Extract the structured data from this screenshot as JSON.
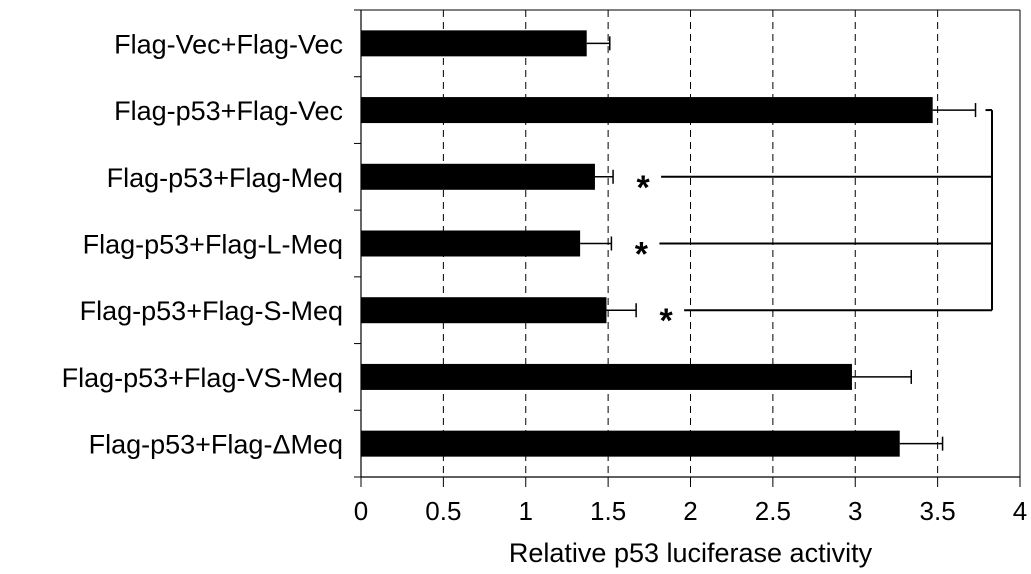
{
  "chart_data": {
    "type": "bar",
    "orientation": "horizontal",
    "categories": [
      "Flag-Vec+Flag-Vec",
      "Flag-p53+Flag-Vec",
      "Flag-p53+Flag-Meq",
      "Flag-p53+Flag-L-Meq",
      "Flag-p53+Flag-S-Meq",
      "Flag-p53+Flag-VS-Meq",
      "Flag-p53+Flag-ΔMeq"
    ],
    "values": [
      1.37,
      3.47,
      1.42,
      1.33,
      1.49,
      2.98,
      3.27
    ],
    "errors": [
      0.14,
      0.26,
      0.11,
      0.19,
      0.18,
      0.36,
      0.26
    ],
    "xlabel": "Relative p53 luciferase activity",
    "ylabel": "",
    "title": "",
    "xlim": [
      0,
      4
    ],
    "x_ticks": [
      "0",
      "0.5",
      "1",
      "1.5",
      "2",
      "2.5",
      "3",
      "3.5",
      "4"
    ],
    "grid": "vertical dashed",
    "bar_color": "#000000",
    "significance": {
      "reference": "Flag-p53+Flag-Vec",
      "marked": [
        "Flag-p53+Flag-Meq",
        "Flag-p53+Flag-L-Meq",
        "Flag-p53+Flag-S-Meq"
      ],
      "symbol": "*"
    }
  }
}
